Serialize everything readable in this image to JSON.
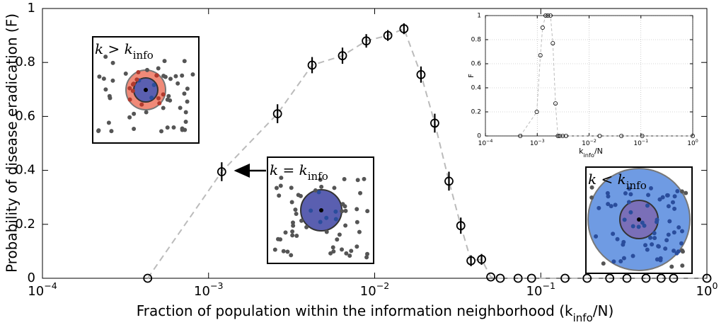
{
  "chart_data": [
    {
      "type": "line",
      "xscale": "log",
      "x_label": {
        "before": "Fraction of population within the information neighborhood (k",
        "sub": "info",
        "after": "/N)"
      },
      "y_label": "Probability of disease eradication (F)",
      "xlim": [
        0.0001,
        1
      ],
      "ylim": [
        0,
        1
      ],
      "xticks": [
        {
          "value": 0.0001,
          "label": "10",
          "power": "−4"
        },
        {
          "value": 0.001,
          "label": "10",
          "power": "−3"
        },
        {
          "value": 0.01,
          "label": "10",
          "power": "−2"
        },
        {
          "value": 0.1,
          "label": "10",
          "power": "−1"
        },
        {
          "value": 1,
          "label": "10",
          "power": "0"
        }
      ],
      "yticks": [
        0,
        0.2,
        0.4,
        0.6,
        0.8,
        1
      ],
      "grid": false,
      "x": [
        0.00043,
        0.0012,
        0.0026,
        0.0042,
        0.0064,
        0.0089,
        0.012,
        0.015,
        0.019,
        0.023,
        0.028,
        0.033,
        0.038,
        0.044,
        0.05,
        0.057,
        0.073,
        0.088,
        0.14,
        0.19,
        0.26,
        0.33,
        0.43,
        0.53,
        0.63,
        1
      ],
      "series": [
        {
          "color": "#000000",
          "line_color": "#bbbbbb",
          "values": [
            0,
            0.395,
            0.61,
            0.79,
            0.825,
            0.88,
            0.9,
            0.925,
            0.755,
            0.575,
            0.36,
            0.195,
            0.065,
            0.07,
            0.005,
            0,
            0,
            0,
            0,
            0,
            0,
            0,
            0,
            0,
            0,
            0
          ],
          "errors": [
            0,
            0.035,
            0.035,
            0.03,
            0.03,
            0.025,
            0.02,
            0.02,
            0.03,
            0.035,
            0.035,
            0.03,
            0.02,
            0.02,
            0,
            0,
            0,
            0,
            0,
            0,
            0,
            0,
            0,
            0,
            0,
            0
          ]
        }
      ],
      "annotations": [
        {
          "text": "k > k",
          "sub": "info"
        },
        {
          "text": "k = k",
          "sub": "info"
        },
        {
          "text": "k < k",
          "sub": "info"
        }
      ]
    },
    {
      "type": "line",
      "xscale": "log",
      "x_label": {
        "before": "k",
        "sub": "info",
        "after": "/N"
      },
      "y_label": "F",
      "xlim": [
        0.0001,
        1
      ],
      "ylim": [
        0,
        1
      ],
      "xticks": [
        {
          "value": 0.0001,
          "label": "10",
          "power": "−4"
        },
        {
          "value": 0.001,
          "label": "10",
          "power": "−3"
        },
        {
          "value": 0.01,
          "label": "10",
          "power": "−2"
        },
        {
          "value": 0.1,
          "label": "10",
          "power": "−1"
        },
        {
          "value": 1,
          "label": "10",
          "power": "0"
        }
      ],
      "yticks": [
        0,
        0.2,
        0.4,
        0.6,
        0.8,
        1
      ],
      "grid": true,
      "x": [
        0.00047,
        0.00098,
        0.00115,
        0.00127,
        0.00145,
        0.0016,
        0.0018,
        0.002,
        0.00225,
        0.0025,
        0.0027,
        0.0031,
        0.0036,
        0.016,
        0.042,
        0.106,
        1
      ],
      "series": [
        {
          "color": "#000000",
          "line_color": "#bbbbbb",
          "values": [
            0,
            0.2,
            0.67,
            0.9,
            1,
            1,
            1,
            0.77,
            0.27,
            0,
            0,
            0,
            0,
            0,
            0,
            0,
            0
          ]
        }
      ]
    }
  ]
}
